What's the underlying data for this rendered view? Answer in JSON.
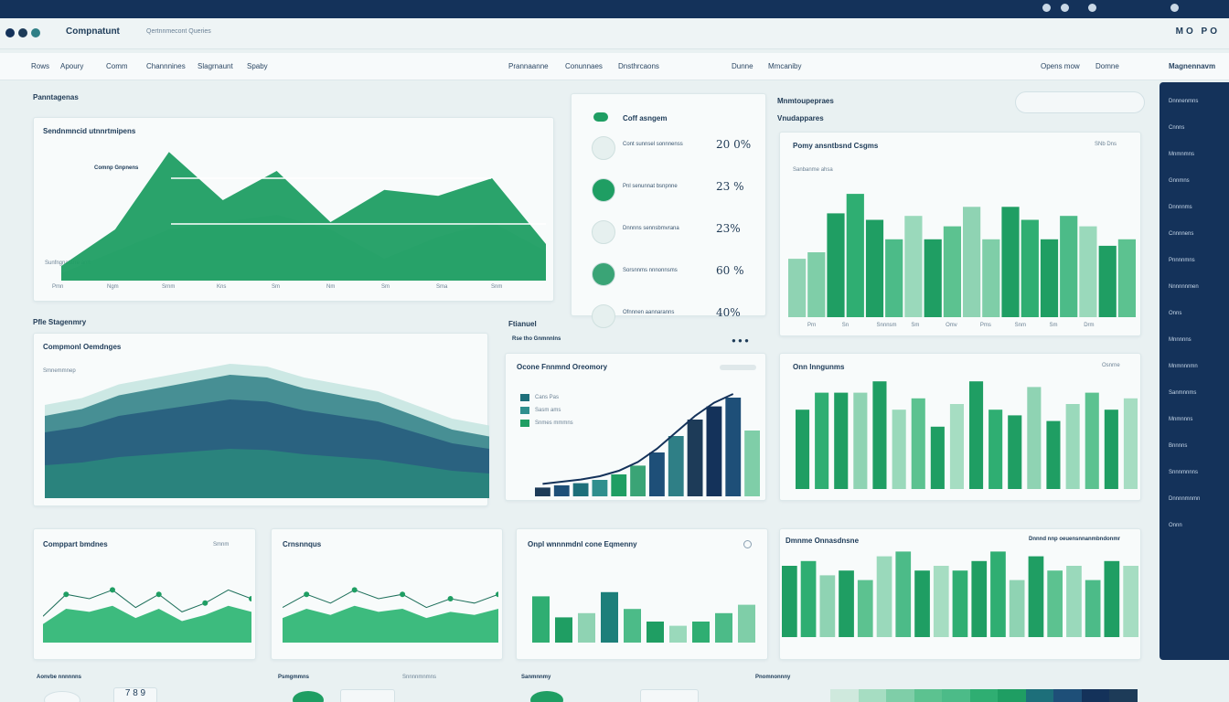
{
  "topbar": {
    "icons": [
      "user-icon",
      "bell-icon",
      "settings-icon",
      "menu-icon"
    ]
  },
  "app": {
    "title": "Compnatunt",
    "subtitle": "Qertnnmecont  Queries",
    "controls": "MO PO"
  },
  "nav": {
    "items": [
      "Rows",
      "Apoury",
      "Comm",
      "Channnines",
      "Slagrnaunt",
      "Spaby",
      "Prannaanne",
      "Conunnaes",
      "Dnsthrcaons",
      "Dunne",
      "Mmcaniby",
      "Opens mow",
      "Domne",
      "Magnennavm"
    ],
    "right_button": "Magnennavm"
  },
  "sections": {
    "top_left_label": "Panntagenas",
    "mid_left_label": "Pfle Stagenmry",
    "mid_center_label": "Ftianuel",
    "right_top_label": "Mnmtoupepraes",
    "right_top_sub": "Vnudappares"
  },
  "cards": {
    "area_main": {
      "title": "Sendnmncid utnnrtmipens",
      "inline_label": "Comnp Gnpnens",
      "left_label": "Sunfngnatarre anlb",
      "x_ticks": [
        "Pmn",
        "Ngm",
        "Srnm",
        "Kns",
        "Sm",
        "Nm",
        "Sm",
        "Sma",
        "Snm"
      ]
    },
    "kpi": {
      "title": "Coff asngem",
      "rows": [
        {
          "name": "Cont sunnsel sonnnenss",
          "value": "20 0%",
          "color": "#e6f0ef"
        },
        {
          "name": "Pnl senunnat bsnpnne",
          "value": "23 %",
          "color": "#1f9e63"
        },
        {
          "name": "Dnnnns sennsbmvrana",
          "value": "23%",
          "color": "#e6f0ef"
        },
        {
          "name": "Sorsnnms nnnonnsms",
          "value": "60 %",
          "color": "#3aa476"
        },
        {
          "name": "Ofnnnen aannaranns",
          "value": "40%",
          "color": "#e6f0ef"
        }
      ]
    },
    "bars_right_top": {
      "title": "Pomy ansntbsnd Csgms",
      "legend": "Sanbanme ahsa",
      "badge": "SNb Dns",
      "x_ticks": [
        "Prn",
        "Sn",
        "Snnnsm",
        "Sm",
        "Omv",
        "Pms",
        "Snm",
        "Sm",
        "Drm"
      ]
    },
    "area_big": {
      "title": "Compmonl Oemdnges",
      "left_label": "Smnemmnep"
    },
    "growth": {
      "title": "Ocone Fnnmnd Oreomory",
      "legend": [
        "Cans Pas",
        "Sasm ams",
        "Snmes mmmns"
      ],
      "header": "Rse tho Gnmnnlns"
    },
    "bars_right_mid": {
      "title": "Onn lnngunms",
      "badge": "Osnrne"
    },
    "small_area_1": {
      "title": "Comppart bmdnes",
      "badge": "Smnm"
    },
    "small_area_2": {
      "title": "Crnsnnqus"
    },
    "small_bars": {
      "title": "Onpl wnnnmdnl cone Eqmenny"
    },
    "bars_right_bottom": {
      "title": "Dmnme Onnasdnsne",
      "header": "Dnnnd nnp oeuensnnanmbndonmr"
    }
  },
  "sidebar": {
    "items": [
      "Dnnnenmns",
      "Cnnns",
      "Mnmnmns",
      "Gnnmns",
      "Dnnnnms",
      "Cnnnnens",
      "Pnnnnmns",
      "Nnnnnnmen",
      "Onns",
      "Mnnnnns",
      "Mnmnnnmn",
      "Sanmnnms",
      "Mnmnnns",
      "Bnnnns",
      "Snnnmnnns",
      "Dnnnnmnmn",
      "Onnn"
    ]
  },
  "bottom": {
    "labels": [
      "Aonvbe nnnnnns",
      "Psmgmmns",
      "Snnnnmnmns",
      "Sanmnnmy",
      "Pnomnonnny"
    ],
    "stepper": "7 8 9"
  },
  "colors": {
    "navy": "#14325a",
    "green": "#1f9e63",
    "mint": "#7fcea8",
    "teal": "#2f7f86"
  },
  "chart_data": [
    {
      "type": "area",
      "name": "area_main",
      "x": [
        0,
        1,
        2,
        3,
        4,
        5,
        6,
        7,
        8,
        9
      ],
      "series": [
        {
          "name": "primary",
          "values": [
            10,
            35,
            88,
            55,
            75,
            40,
            62,
            58,
            70,
            25
          ]
        },
        {
          "name": "secondary",
          "values": [
            5,
            20,
            35,
            40,
            45,
            35,
            15,
            30,
            40,
            20
          ]
        }
      ],
      "ylim": [
        0,
        100
      ]
    },
    {
      "type": "bar",
      "name": "bars_right_top",
      "values": [
        45,
        50,
        80,
        95,
        75,
        60,
        78,
        60,
        70,
        85,
        60,
        85,
        75,
        60,
        78,
        70,
        55,
        60
      ]
    },
    {
      "type": "area",
      "name": "area_big",
      "values": [
        60,
        65,
        75,
        80,
        85,
        90,
        88,
        80,
        75,
        70,
        60,
        50,
        45
      ]
    },
    {
      "type": "bar",
      "name": "growth",
      "values": [
        8,
        10,
        12,
        15,
        20,
        28,
        40,
        55,
        70,
        82,
        90,
        60
      ]
    },
    {
      "type": "bar",
      "name": "bars_right_mid",
      "values": [
        70,
        85,
        85,
        85,
        95,
        70,
        80,
        55,
        75,
        95,
        70,
        65,
        90,
        60,
        75,
        85,
        70,
        80
      ]
    },
    {
      "type": "area",
      "name": "small_area_1",
      "values": [
        30,
        55,
        50,
        60,
        40,
        55,
        35,
        45,
        60,
        50
      ]
    },
    {
      "type": "area",
      "name": "small_area_2",
      "values": [
        40,
        55,
        45,
        60,
        50,
        55,
        40,
        50,
        45,
        55
      ]
    },
    {
      "type": "bar",
      "name": "small_bars",
      "values": [
        55,
        30,
        35,
        60,
        40,
        25,
        20,
        25,
        35,
        45
      ]
    },
    {
      "type": "bar",
      "name": "bars_right_bottom",
      "values": [
        75,
        80,
        65,
        70,
        60,
        85,
        90,
        70,
        75,
        70,
        80,
        90,
        60,
        85,
        70,
        75,
        60,
        80,
        75
      ]
    }
  ]
}
